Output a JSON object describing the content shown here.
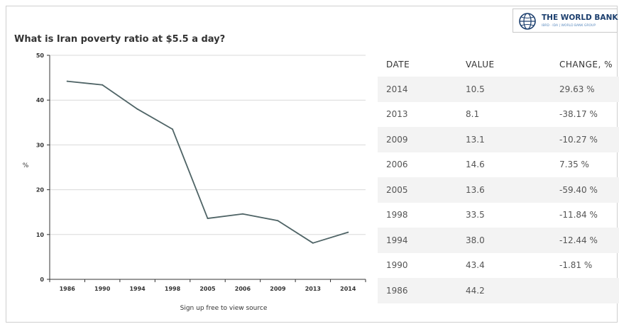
{
  "logo": {
    "text": "THE WORLD BANK",
    "subtext": "IBRD · IDA | WORLD BANK GROUP"
  },
  "title": "What is Iran poverty ratio at $5.5 a day?",
  "source_link": "Sign up free to view source",
  "table": {
    "headers": [
      "DATE",
      "VALUE",
      "CHANGE, %"
    ],
    "rows": [
      [
        "2014",
        "10.5",
        "29.63 %"
      ],
      [
        "2013",
        "8.1",
        "-38.17 %"
      ],
      [
        "2009",
        "13.1",
        "-10.27 %"
      ],
      [
        "2006",
        "14.6",
        "7.35 %"
      ],
      [
        "2005",
        "13.6",
        "-59.40 %"
      ],
      [
        "1998",
        "33.5",
        "-11.84 %"
      ],
      [
        "1994",
        "38.0",
        "-12.44 %"
      ],
      [
        "1990",
        "43.4",
        "-1.81 %"
      ],
      [
        "1986",
        "44.2",
        ""
      ]
    ]
  },
  "chart_data": {
    "type": "line",
    "title": "What is Iran poverty ratio at $5.5 a day?",
    "xlabel": "",
    "ylabel": "%",
    "categories": [
      "1986",
      "1990",
      "1994",
      "1998",
      "2005",
      "2006",
      "2009",
      "2013",
      "2014"
    ],
    "series": [
      {
        "values": [
          44.2,
          43.4,
          38.0,
          33.5,
          13.6,
          14.6,
          13.1,
          8.1,
          10.5
        ]
      }
    ],
    "ylim": [
      0,
      50
    ],
    "yticks": [
      "0",
      "10",
      "20",
      "30",
      "40",
      "50"
    ],
    "grid": true,
    "colors": {
      "line": "#4f6466",
      "grid": "#d9d9d9",
      "axis": "#333333"
    }
  }
}
